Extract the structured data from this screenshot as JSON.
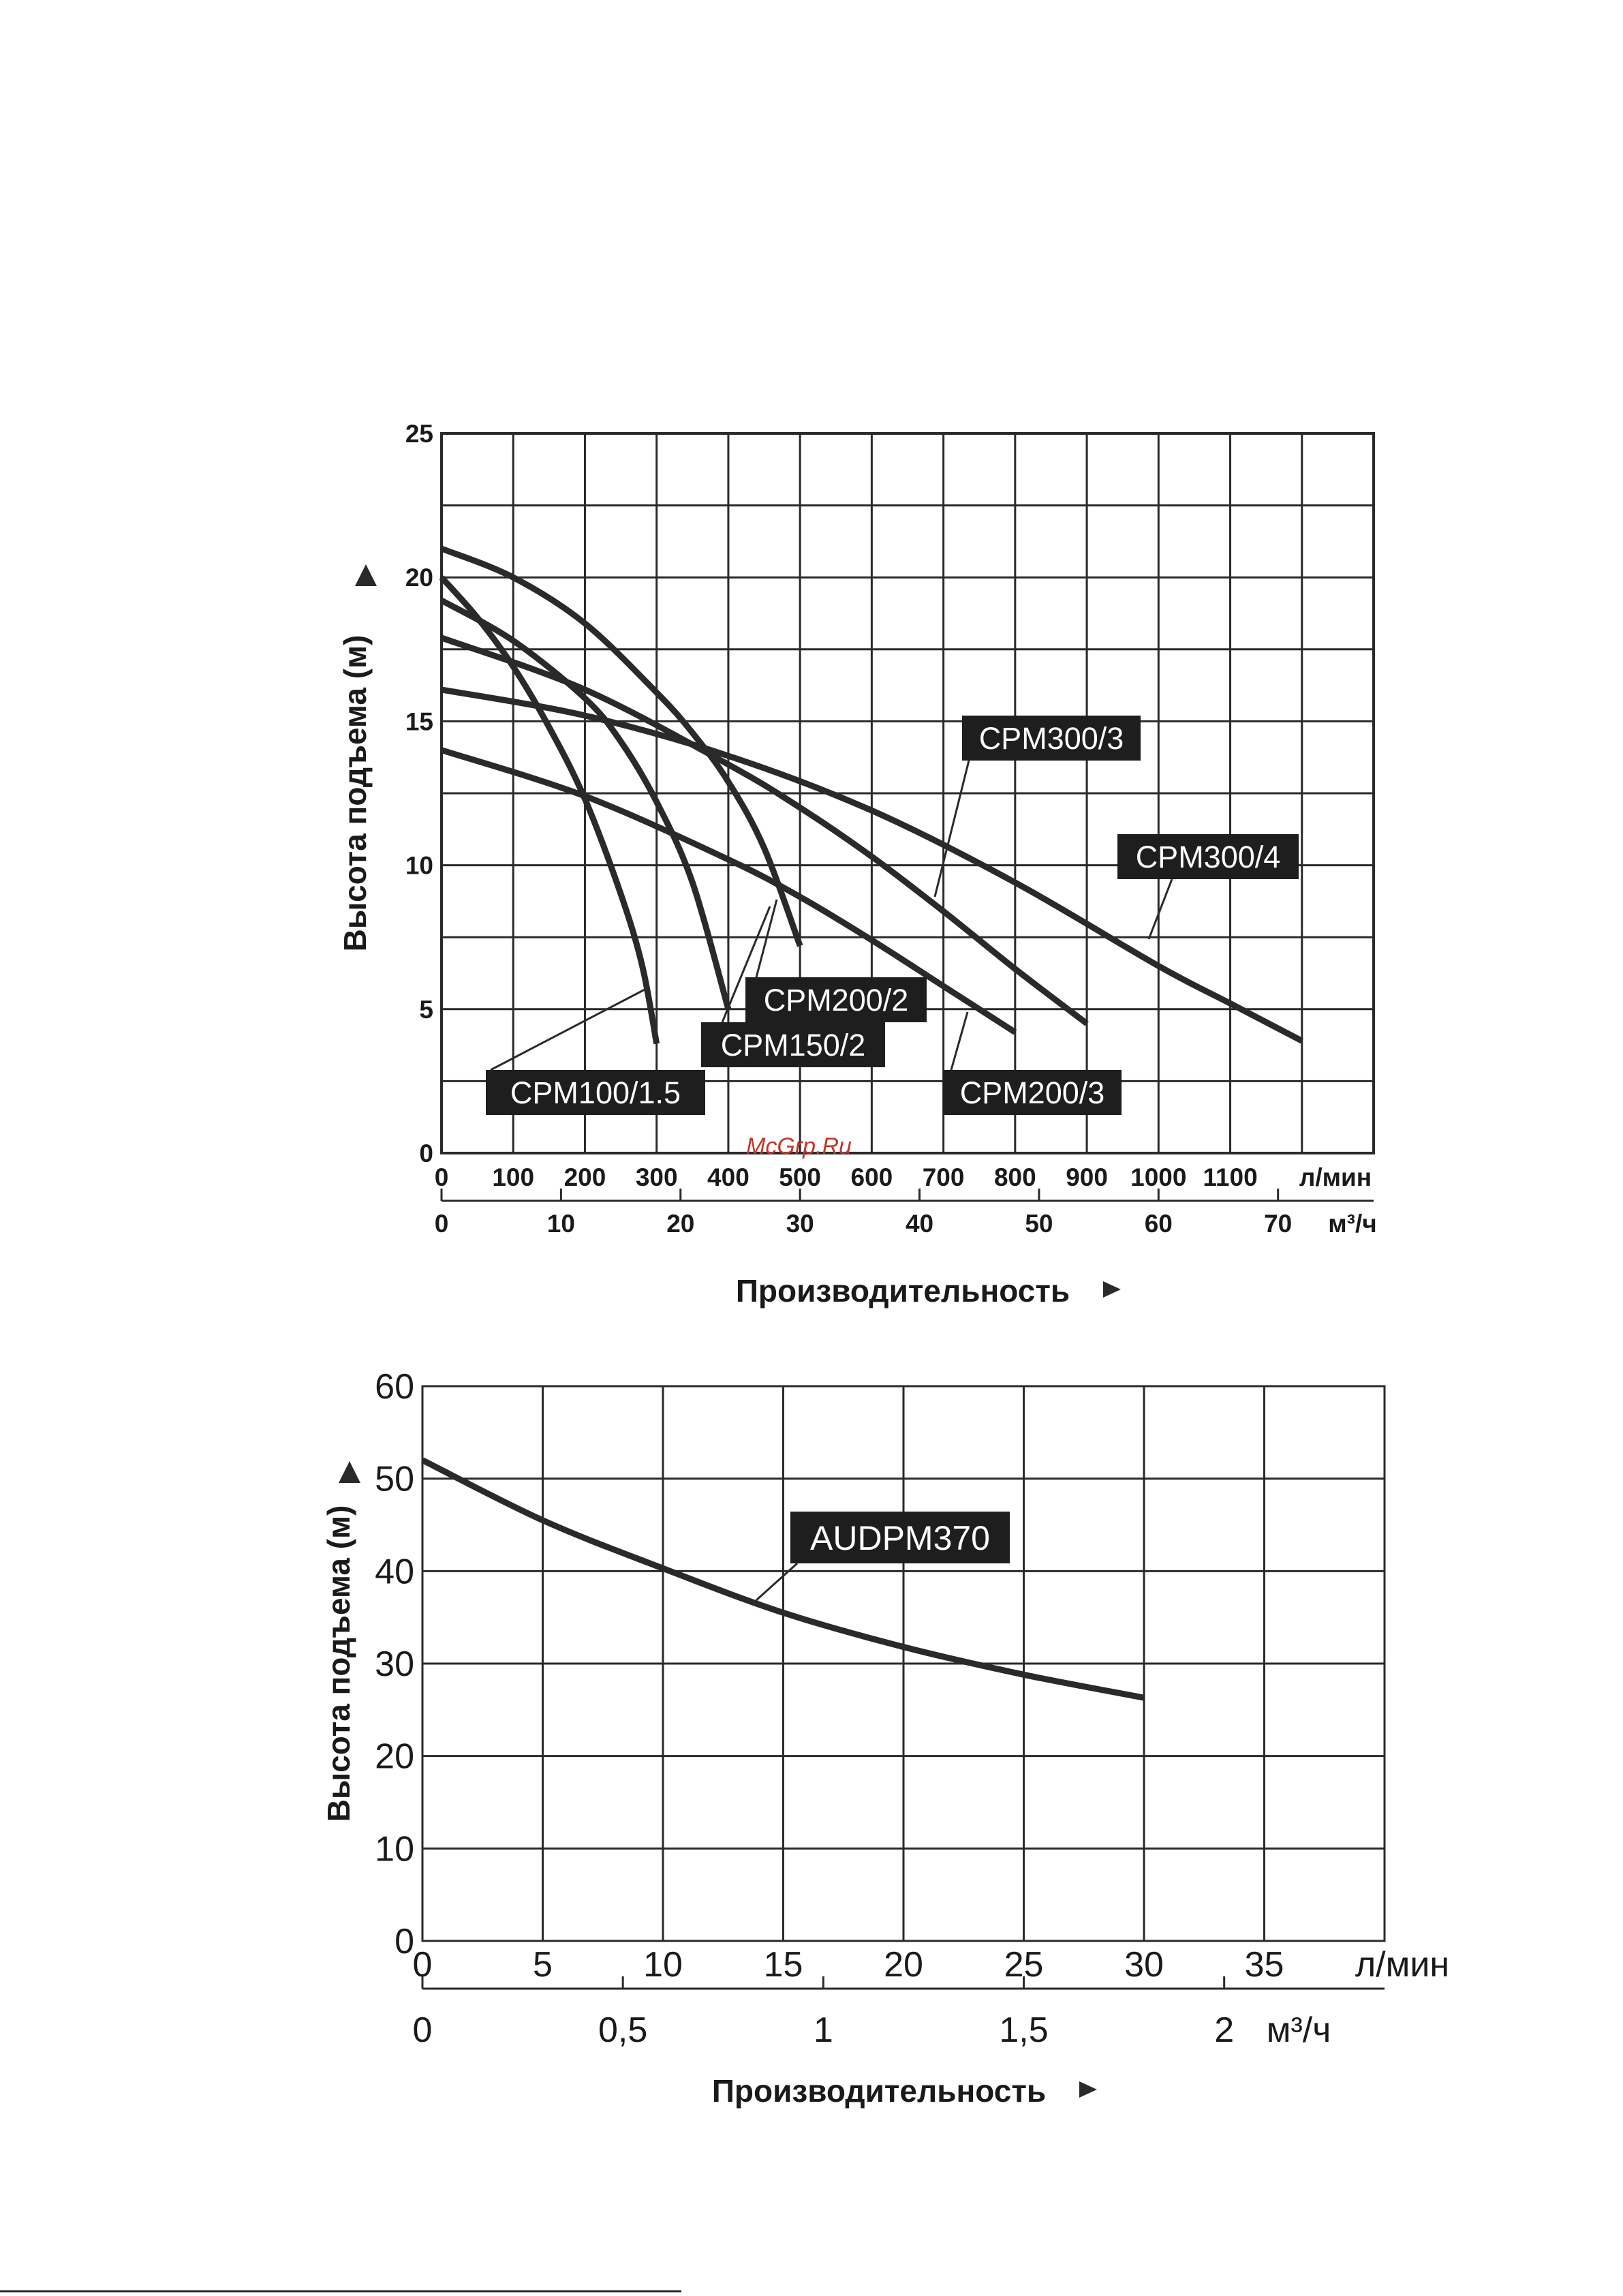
{
  "watermark": "McGrp.Ru",
  "colors": {
    "line": "#2a2a2a",
    "grid": "#2a2a2a",
    "tag_bg": "#1e1e1e",
    "tag_text": "#ffffff",
    "watermark": "#c0392b"
  },
  "chart_data": [
    {
      "type": "line",
      "title": "",
      "ylabel": "Высота подъема (м)",
      "xlabel": "Производительность",
      "ylim": [
        0,
        25
      ],
      "xlim": [
        0,
        1300
      ],
      "y_ticks": [
        "0",
        "5",
        "10",
        "15",
        "20",
        "25"
      ],
      "x_ticks": [
        "0",
        "100",
        "200",
        "300",
        "400",
        "500",
        "600",
        "700",
        "800",
        "900",
        "1000",
        "1100"
      ],
      "x_unit": "л/мин",
      "x2_ticks": [
        "0",
        "10",
        "20",
        "30",
        "40",
        "50",
        "60",
        "70"
      ],
      "x2_unit": "м³/ч",
      "grid": true,
      "series": [
        {
          "name": "CPM100/1.5",
          "x": [
            0,
            50,
            100,
            150,
            200,
            250,
            280,
            300
          ],
          "y": [
            20.0,
            18.6,
            16.9,
            14.8,
            12.3,
            9.0,
            6.5,
            3.8
          ]
        },
        {
          "name": "CPM150/2",
          "x": [
            0,
            100,
            200,
            250,
            300,
            350,
            400
          ],
          "y": [
            19.2,
            17.8,
            15.8,
            14.3,
            12.2,
            9.4,
            5.0
          ]
        },
        {
          "name": "CPM200/2",
          "x": [
            0,
            100,
            200,
            300,
            350,
            400,
            450,
            500
          ],
          "y": [
            21.0,
            20.0,
            18.4,
            16.0,
            14.6,
            12.9,
            10.6,
            7.2
          ]
        },
        {
          "name": "CPM200/3",
          "x": [
            0,
            200,
            400,
            500,
            600,
            700,
            800
          ],
          "y": [
            14.0,
            12.4,
            10.2,
            8.9,
            7.4,
            5.8,
            4.2
          ]
        },
        {
          "name": "CPM300/3",
          "x": [
            0,
            200,
            400,
            500,
            600,
            700,
            800,
            900
          ],
          "y": [
            17.9,
            16.1,
            13.5,
            12.0,
            10.3,
            8.4,
            6.4,
            4.5
          ]
        },
        {
          "name": "CPM300/4",
          "x": [
            0,
            200,
            400,
            600,
            800,
            1000,
            1100,
            1200
          ],
          "y": [
            16.1,
            15.2,
            13.8,
            11.9,
            9.4,
            6.5,
            5.2,
            3.9
          ]
        }
      ]
    },
    {
      "type": "line",
      "title": "",
      "ylabel": "Высота подъема (м)",
      "xlabel": "Производительность",
      "ylim": [
        0,
        60
      ],
      "xlim": [
        0,
        40
      ],
      "y_ticks": [
        "0",
        "10",
        "20",
        "30",
        "40",
        "50",
        "60"
      ],
      "x_ticks": [
        "0",
        "5",
        "10",
        "15",
        "20",
        "25",
        "30",
        "35"
      ],
      "x_unit": "л/мин",
      "x2_ticks": [
        "0",
        "0,5",
        "1",
        "1,5",
        "2"
      ],
      "x2_unit": "м³/ч",
      "grid": true,
      "series": [
        {
          "name": "AUDPM370",
          "x": [
            0,
            5,
            10,
            15,
            20,
            25,
            30
          ],
          "y": [
            52.0,
            45.5,
            40.3,
            35.5,
            31.8,
            28.8,
            26.3
          ]
        }
      ]
    }
  ]
}
